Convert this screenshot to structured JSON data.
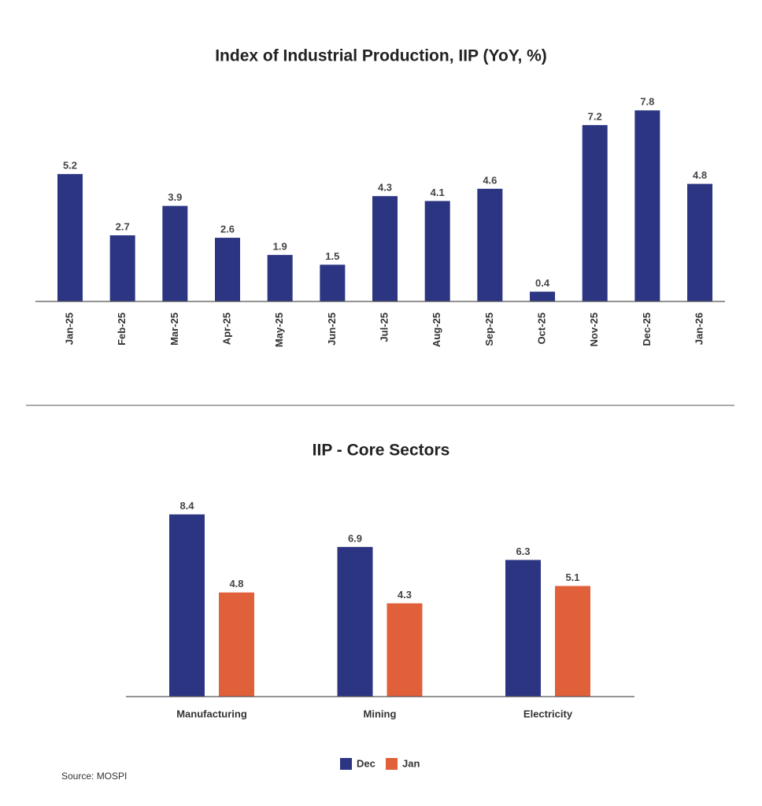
{
  "chart_data": [
    {
      "type": "bar",
      "title": "Index of Industrial Production, IIP (YoY, %)",
      "categories": [
        "Jan-25",
        "Feb-25",
        "Mar-25",
        "Apr-25",
        "May-25",
        "Jun-25",
        "Jul-25",
        "Aug-25",
        "Sep-25",
        "Oct-25",
        "Nov-25",
        "Dec-25",
        "Jan-26"
      ],
      "values": [
        5.2,
        2.7,
        3.9,
        2.6,
        1.9,
        1.5,
        4.3,
        4.1,
        4.6,
        0.4,
        7.2,
        7.8,
        4.8
      ],
      "color": "#2b3582",
      "ylim": [
        0,
        8
      ]
    },
    {
      "type": "grouped-bar",
      "title": "IIP - Core Sectors",
      "categories": [
        "Manufacturing",
        "Mining",
        "Electricity"
      ],
      "series": [
        {
          "name": "Dec",
          "color": "#2b3582",
          "values": [
            8.4,
            6.9,
            6.3
          ]
        },
        {
          "name": "Jan",
          "color": "#e0603a",
          "values": [
            4.8,
            4.3,
            5.1
          ]
        }
      ],
      "ylim": [
        0,
        9
      ],
      "legend": "bottom"
    }
  ],
  "source": "Source: MOSPI"
}
